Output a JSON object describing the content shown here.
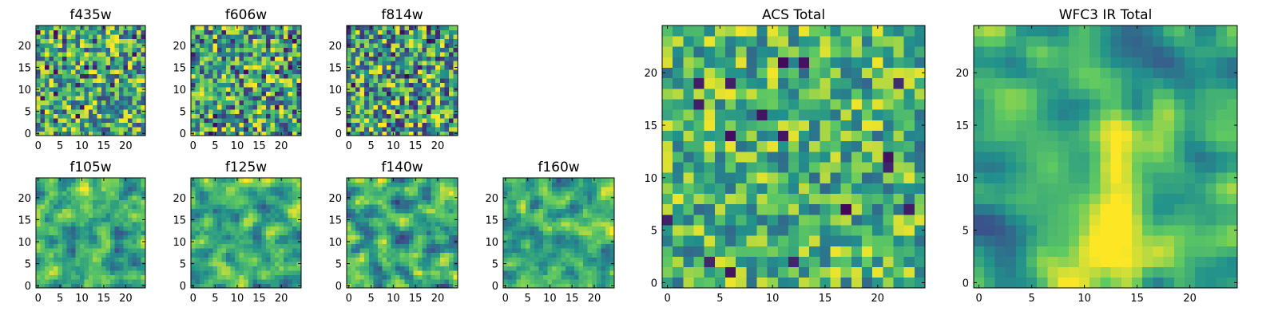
{
  "colormap": [
    "#440154",
    "#3b528b",
    "#21918c",
    "#5ec962",
    "#fde725"
  ],
  "chart_data": [
    {
      "type": "heatmap",
      "title": "f435w",
      "shape": [
        25,
        25
      ],
      "xticks": [
        0,
        5,
        10,
        15,
        20
      ],
      "yticks": [
        0,
        5,
        10,
        15,
        20
      ],
      "xlim": [
        -0.5,
        24.5
      ],
      "ylim": [
        -0.5,
        24.5
      ],
      "texture": "fine",
      "mean": 0.62,
      "spread": 0.22
    },
    {
      "type": "heatmap",
      "title": "f606w",
      "shape": [
        25,
        25
      ],
      "xticks": [
        0,
        5,
        10,
        15,
        20
      ],
      "yticks": [
        0,
        5,
        10,
        15,
        20
      ],
      "xlim": [
        -0.5,
        24.5
      ],
      "ylim": [
        -0.5,
        24.5
      ],
      "texture": "fine",
      "mean": 0.58,
      "spread": 0.24
    },
    {
      "type": "heatmap",
      "title": "f814w",
      "shape": [
        25,
        25
      ],
      "xticks": [
        0,
        5,
        10,
        15,
        20
      ],
      "yticks": [
        0,
        5,
        10,
        15,
        20
      ],
      "xlim": [
        -0.5,
        24.5
      ],
      "ylim": [
        -0.5,
        24.5
      ],
      "texture": "fine",
      "mean": 0.58,
      "spread": 0.24
    },
    {
      "type": "heatmap",
      "title": "f105w",
      "shape": [
        25,
        25
      ],
      "xticks": [
        0,
        5,
        10,
        15,
        20
      ],
      "yticks": [
        0,
        5,
        10,
        15,
        20
      ],
      "xlim": [
        -0.5,
        24.5
      ],
      "ylim": [
        -0.5,
        24.5
      ],
      "texture": "smooth",
      "mean": 0.6,
      "spread": 0.22
    },
    {
      "type": "heatmap",
      "title": "f125w",
      "shape": [
        25,
        25
      ],
      "xticks": [
        0,
        5,
        10,
        15,
        20
      ],
      "yticks": [
        0,
        5,
        10,
        15,
        20
      ],
      "xlim": [
        -0.5,
        24.5
      ],
      "ylim": [
        -0.5,
        24.5
      ],
      "texture": "smooth",
      "mean": 0.62,
      "spread": 0.22
    },
    {
      "type": "heatmap",
      "title": "f140w",
      "shape": [
        25,
        25
      ],
      "xticks": [
        0,
        5,
        10,
        15,
        20
      ],
      "yticks": [
        0,
        5,
        10,
        15,
        20
      ],
      "xlim": [
        -0.5,
        24.5
      ],
      "ylim": [
        -0.5,
        24.5
      ],
      "texture": "smooth",
      "mean": 0.6,
      "spread": 0.22
    },
    {
      "type": "heatmap",
      "title": "f160w",
      "shape": [
        25,
        25
      ],
      "xticks": [
        0,
        5,
        10,
        15,
        20
      ],
      "yticks": [
        0,
        5,
        10,
        15,
        20
      ],
      "xlim": [
        -0.5,
        24.5
      ],
      "ylim": [
        -0.5,
        24.5
      ],
      "texture": "smooth",
      "mean": 0.62,
      "spread": 0.22
    },
    {
      "type": "heatmap",
      "title": "ACS Total",
      "shape": [
        25,
        25
      ],
      "xticks": [
        0,
        5,
        10,
        15,
        20
      ],
      "yticks": [
        0,
        5,
        10,
        15,
        20
      ],
      "xlim": [
        -0.5,
        24.5
      ],
      "ylim": [
        -0.5,
        24.5
      ],
      "texture": "fine",
      "mean": 0.66,
      "spread": 0.17
    },
    {
      "type": "heatmap",
      "title": "WFC3 IR Total",
      "shape": [
        25,
        25
      ],
      "xticks": [
        0,
        5,
        10,
        15,
        20
      ],
      "yticks": [
        0,
        5,
        10,
        15,
        20
      ],
      "xlim": [
        -0.5,
        24.5
      ],
      "ylim": [
        -0.5,
        24.5
      ],
      "texture": "blob",
      "mean": 0.58,
      "spread": 0.2
    }
  ]
}
